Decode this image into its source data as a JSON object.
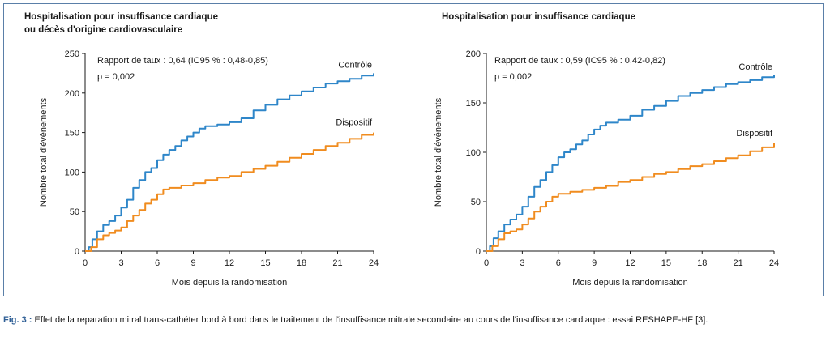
{
  "figure": {
    "caption_label": "Fig. 3 :",
    "caption_text": "Effet de la reparation mitral trans-cathéter bord à bord dans le traitement de l'insuffisance mitrale secondaire au cours de l'insuffisance cardiaque : essai RESHAPE-HF [3]."
  },
  "chart_data": [
    {
      "type": "line",
      "title_lines": [
        "Hospitalisation pour insuffisance cardiaque",
        "ou décès d'origine cardiovasculaire"
      ],
      "annotation_lines": [
        "Rapport de taux : 0,64 (IC95 % : 0,48-0,85)",
        "p = 0,002"
      ],
      "xlabel": "Mois depuis la randomisation",
      "ylabel": "Nombre total d'évènements",
      "xlim": [
        0,
        24
      ],
      "ylim": [
        0,
        250
      ],
      "xticks": [
        0,
        3,
        6,
        9,
        12,
        15,
        18,
        21,
        24
      ],
      "yticks": [
        0,
        50,
        100,
        150,
        200,
        250
      ],
      "grid": false,
      "series": [
        {
          "name": "Contrôle",
          "color": "#2e86c9",
          "points": [
            [
              0,
              0
            ],
            [
              0.3,
              5
            ],
            [
              0.6,
              15
            ],
            [
              1,
              25
            ],
            [
              1.5,
              33
            ],
            [
              2,
              38
            ],
            [
              2.5,
              45
            ],
            [
              3,
              55
            ],
            [
              3.5,
              65
            ],
            [
              4,
              80
            ],
            [
              4.5,
              90
            ],
            [
              5,
              100
            ],
            [
              5.5,
              105
            ],
            [
              6,
              115
            ],
            [
              6.5,
              122
            ],
            [
              7,
              128
            ],
            [
              7.5,
              133
            ],
            [
              8,
              140
            ],
            [
              8.5,
              145
            ],
            [
              9,
              150
            ],
            [
              9.5,
              155
            ],
            [
              10,
              158
            ],
            [
              11,
              160
            ],
            [
              12,
              163
            ],
            [
              13,
              168
            ],
            [
              14,
              178
            ],
            [
              15,
              185
            ],
            [
              16,
              192
            ],
            [
              17,
              197
            ],
            [
              18,
              202
            ],
            [
              19,
              207
            ],
            [
              20,
              212
            ],
            [
              21,
              215
            ],
            [
              22,
              218
            ],
            [
              23,
              222
            ],
            [
              24,
              225
            ]
          ]
        },
        {
          "name": "Dispositif",
          "color": "#f08c1f",
          "points": [
            [
              0,
              0
            ],
            [
              0.5,
              5
            ],
            [
              1,
              15
            ],
            [
              1.5,
              20
            ],
            [
              2,
              23
            ],
            [
              2.5,
              26
            ],
            [
              3,
              30
            ],
            [
              3.5,
              38
            ],
            [
              4,
              45
            ],
            [
              4.5,
              52
            ],
            [
              5,
              60
            ],
            [
              5.5,
              65
            ],
            [
              6,
              72
            ],
            [
              6.5,
              78
            ],
            [
              7,
              80
            ],
            [
              8,
              83
            ],
            [
              9,
              86
            ],
            [
              10,
              90
            ],
            [
              11,
              93
            ],
            [
              12,
              95
            ],
            [
              13,
              100
            ],
            [
              14,
              104
            ],
            [
              15,
              108
            ],
            [
              16,
              113
            ],
            [
              17,
              118
            ],
            [
              18,
              123
            ],
            [
              19,
              128
            ],
            [
              20,
              133
            ],
            [
              21,
              137
            ],
            [
              22,
              142
            ],
            [
              23,
              147
            ],
            [
              24,
              150
            ]
          ]
        }
      ]
    },
    {
      "type": "line",
      "title_lines": [
        "Hospitalisation pour insuffisance cardiaque"
      ],
      "annotation_lines": [
        "Rapport de taux : 0,59 (IC95 % : 0,42-0,82)",
        "p = 0,002"
      ],
      "xlabel": "Mois depuis la randomisation",
      "ylabel": "Nombre total d'évènements",
      "xlim": [
        0,
        24
      ],
      "ylim": [
        0,
        200
      ],
      "xticks": [
        0,
        3,
        6,
        9,
        12,
        15,
        18,
        21,
        24
      ],
      "yticks": [
        0,
        50,
        100,
        150,
        200
      ],
      "grid": false,
      "series": [
        {
          "name": "Contrôle",
          "color": "#2e86c9",
          "points": [
            [
              0,
              0
            ],
            [
              0.3,
              5
            ],
            [
              0.6,
              13
            ],
            [
              1,
              20
            ],
            [
              1.5,
              27
            ],
            [
              2,
              32
            ],
            [
              2.5,
              37
            ],
            [
              3,
              45
            ],
            [
              3.5,
              55
            ],
            [
              4,
              65
            ],
            [
              4.5,
              72
            ],
            [
              5,
              80
            ],
            [
              5.5,
              87
            ],
            [
              6,
              95
            ],
            [
              6.5,
              100
            ],
            [
              7,
              103
            ],
            [
              7.5,
              108
            ],
            [
              8,
              112
            ],
            [
              8.5,
              118
            ],
            [
              9,
              123
            ],
            [
              9.5,
              127
            ],
            [
              10,
              130
            ],
            [
              11,
              133
            ],
            [
              12,
              137
            ],
            [
              13,
              143
            ],
            [
              14,
              147
            ],
            [
              15,
              152
            ],
            [
              16,
              157
            ],
            [
              17,
              160
            ],
            [
              18,
              163
            ],
            [
              19,
              166
            ],
            [
              20,
              169
            ],
            [
              21,
              171
            ],
            [
              22,
              173
            ],
            [
              23,
              176
            ],
            [
              24,
              178
            ]
          ]
        },
        {
          "name": "Dispositif",
          "color": "#f08c1f",
          "points": [
            [
              0,
              0
            ],
            [
              0.5,
              5
            ],
            [
              1,
              12
            ],
            [
              1.5,
              18
            ],
            [
              2,
              20
            ],
            [
              2.5,
              22
            ],
            [
              3,
              27
            ],
            [
              3.5,
              33
            ],
            [
              4,
              40
            ],
            [
              4.5,
              45
            ],
            [
              5,
              50
            ],
            [
              5.5,
              55
            ],
            [
              6,
              58
            ],
            [
              7,
              60
            ],
            [
              8,
              62
            ],
            [
              9,
              64
            ],
            [
              10,
              66
            ],
            [
              11,
              70
            ],
            [
              12,
              72
            ],
            [
              13,
              75
            ],
            [
              14,
              78
            ],
            [
              15,
              80
            ],
            [
              16,
              83
            ],
            [
              17,
              86
            ],
            [
              18,
              88
            ],
            [
              19,
              91
            ],
            [
              20,
              94
            ],
            [
              21,
              97
            ],
            [
              22,
              101
            ],
            [
              23,
              105
            ],
            [
              24,
              109
            ]
          ]
        }
      ]
    }
  ]
}
